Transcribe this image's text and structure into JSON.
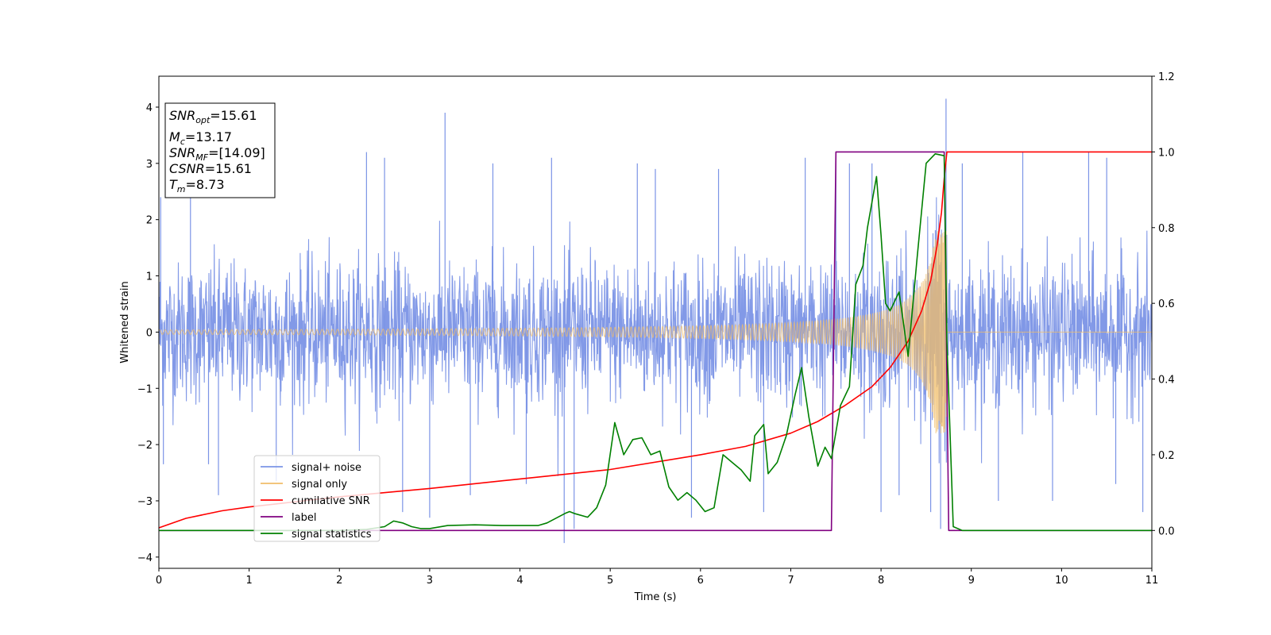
{
  "chart_data": {
    "type": "line",
    "xlabel": "Time (s)",
    "ylabel": "Whitened strain",
    "xlim": [
      0,
      11
    ],
    "ylim": [
      -4.2,
      4.55
    ],
    "y2lim": [
      -0.1,
      1.2
    ],
    "x_ticks": [
      "0",
      "1",
      "2",
      "3",
      "4",
      "5",
      "6",
      "7",
      "8",
      "9",
      "10",
      "11"
    ],
    "y_ticks": [
      "−4",
      "−3",
      "−2",
      "−1",
      "0",
      "1",
      "2",
      "3",
      "4"
    ],
    "y2_ticks": [
      "0.0",
      "0.2",
      "0.4",
      "0.6",
      "0.8",
      "1.0",
      "1.2"
    ],
    "grid": false,
    "legend_position": "lower-left",
    "annotation": {
      "snr_opt": {
        "name": "SNR",
        "sub": "opt",
        "value": "=15.61"
      },
      "mc": {
        "name": "M",
        "sub": "c",
        "value": "=13.17"
      },
      "snr_mf": {
        "name": "SNR",
        "sub": "MF",
        "value": "=[14.09]"
      },
      "csnr": {
        "name": "CSNR",
        "value": "=15.61"
      },
      "tm": {
        "name": "T",
        "sub": "m",
        "value": "=8.73"
      }
    },
    "series": [
      {
        "name": "signal+ noise",
        "color": "#7b94e6",
        "axis": "left",
        "kind": "noisy",
        "std": 0.62,
        "spikes": [
          [
            0.02,
            2.4
          ],
          [
            0.05,
            -2.35
          ],
          [
            0.35,
            2.5
          ],
          [
            0.55,
            -2.35
          ],
          [
            0.66,
            -2.9
          ],
          [
            1.3,
            -2.65
          ],
          [
            2.3,
            3.2
          ],
          [
            2.5,
            3.1
          ],
          [
            2.7,
            -3.2
          ],
          [
            3.0,
            -3.3
          ],
          [
            3.17,
            3.9
          ],
          [
            3.45,
            -2.9
          ],
          [
            3.7,
            3.0
          ],
          [
            4.07,
            -2.7
          ],
          [
            4.35,
            3.1
          ],
          [
            4.49,
            -3.75
          ],
          [
            4.6,
            -3.5
          ],
          [
            5.3,
            3.0
          ],
          [
            5.5,
            2.9
          ],
          [
            5.9,
            -3.3
          ],
          [
            6.2,
            2.9
          ],
          [
            6.7,
            -3.2
          ],
          [
            7.16,
            3.1
          ],
          [
            7.5,
            3.2
          ],
          [
            7.65,
            3.0
          ],
          [
            7.9,
            3.0
          ],
          [
            8.0,
            -3.2
          ],
          [
            8.2,
            -2.9
          ],
          [
            8.55,
            -3.2
          ],
          [
            8.66,
            -3.5
          ],
          [
            8.72,
            4.15
          ],
          [
            8.9,
            3.0
          ],
          [
            9.3,
            -3.0
          ],
          [
            9.57,
            3.2
          ],
          [
            9.9,
            -3.0
          ],
          [
            10.3,
            3.2
          ],
          [
            10.5,
            3.1
          ],
          [
            10.6,
            -2.7
          ],
          [
            10.9,
            -3.2
          ]
        ]
      },
      {
        "name": "signal only",
        "color": "#f0bd6a",
        "axis": "left",
        "kind": "chirp",
        "t_merger": 8.73
      },
      {
        "name": "cumilative SNR",
        "color": "#ff0000",
        "axis": "right",
        "points": [
          [
            0,
            0.007
          ],
          [
            0.3,
            0.032
          ],
          [
            0.7,
            0.052
          ],
          [
            1,
            0.062
          ],
          [
            2,
            0.089
          ],
          [
            3,
            0.111
          ],
          [
            4,
            0.136
          ],
          [
            5,
            0.161
          ],
          [
            6,
            0.2
          ],
          [
            6.5,
            0.222
          ],
          [
            7,
            0.257
          ],
          [
            7.3,
            0.288
          ],
          [
            7.6,
            0.33
          ],
          [
            7.9,
            0.38
          ],
          [
            8.1,
            0.43
          ],
          [
            8.3,
            0.5
          ],
          [
            8.45,
            0.58
          ],
          [
            8.55,
            0.66
          ],
          [
            8.62,
            0.75
          ],
          [
            8.67,
            0.84
          ],
          [
            8.7,
            0.93
          ],
          [
            8.73,
            1.0
          ],
          [
            11,
            1.0
          ]
        ]
      },
      {
        "name": "label",
        "color": "#800080",
        "axis": "right",
        "points": [
          [
            0,
            0
          ],
          [
            7.45,
            0
          ],
          [
            7.5,
            1.0
          ],
          [
            8.7,
            1.0
          ],
          [
            8.75,
            0
          ],
          [
            11,
            0
          ]
        ]
      },
      {
        "name": "signal statistics",
        "color": "#008000",
        "axis": "right",
        "points": [
          [
            0,
            0.0
          ],
          [
            1,
            0.0
          ],
          [
            2.0,
            0.0
          ],
          [
            2.3,
            0.003
          ],
          [
            2.5,
            0.01
          ],
          [
            2.6,
            0.025
          ],
          [
            2.7,
            0.02
          ],
          [
            2.8,
            0.01
          ],
          [
            2.9,
            0.005
          ],
          [
            3.0,
            0.005
          ],
          [
            3.2,
            0.013
          ],
          [
            3.5,
            0.015
          ],
          [
            3.8,
            0.013
          ],
          [
            4.2,
            0.013
          ],
          [
            4.3,
            0.02
          ],
          [
            4.5,
            0.045
          ],
          [
            4.55,
            0.05
          ],
          [
            4.6,
            0.045
          ],
          [
            4.75,
            0.035
          ],
          [
            4.85,
            0.06
          ],
          [
            4.95,
            0.12
          ],
          [
            5.05,
            0.285
          ],
          [
            5.15,
            0.2
          ],
          [
            5.25,
            0.24
          ],
          [
            5.35,
            0.245
          ],
          [
            5.45,
            0.2
          ],
          [
            5.55,
            0.21
          ],
          [
            5.65,
            0.115
          ],
          [
            5.75,
            0.08
          ],
          [
            5.85,
            0.1
          ],
          [
            5.95,
            0.08
          ],
          [
            6.05,
            0.05
          ],
          [
            6.15,
            0.06
          ],
          [
            6.25,
            0.2
          ],
          [
            6.35,
            0.18
          ],
          [
            6.45,
            0.16
          ],
          [
            6.55,
            0.13
          ],
          [
            6.6,
            0.25
          ],
          [
            6.7,
            0.28
          ],
          [
            6.75,
            0.15
          ],
          [
            6.85,
            0.18
          ],
          [
            6.95,
            0.25
          ],
          [
            7.05,
            0.36
          ],
          [
            7.12,
            0.43
          ],
          [
            7.2,
            0.3
          ],
          [
            7.3,
            0.17
          ],
          [
            7.38,
            0.22
          ],
          [
            7.45,
            0.19
          ],
          [
            7.55,
            0.33
          ],
          [
            7.65,
            0.38
          ],
          [
            7.72,
            0.65
          ],
          [
            7.8,
            0.7
          ],
          [
            7.85,
            0.8
          ],
          [
            7.95,
            0.935
          ],
          [
            8.0,
            0.78
          ],
          [
            8.05,
            0.6
          ],
          [
            8.1,
            0.58
          ],
          [
            8.2,
            0.63
          ],
          [
            8.3,
            0.46
          ],
          [
            8.4,
            0.72
          ],
          [
            8.5,
            0.97
          ],
          [
            8.6,
            0.995
          ],
          [
            8.7,
            0.99
          ],
          [
            8.73,
            0.5
          ],
          [
            8.8,
            0.01
          ],
          [
            8.9,
            0.0
          ],
          [
            11,
            0.0
          ]
        ]
      }
    ]
  }
}
